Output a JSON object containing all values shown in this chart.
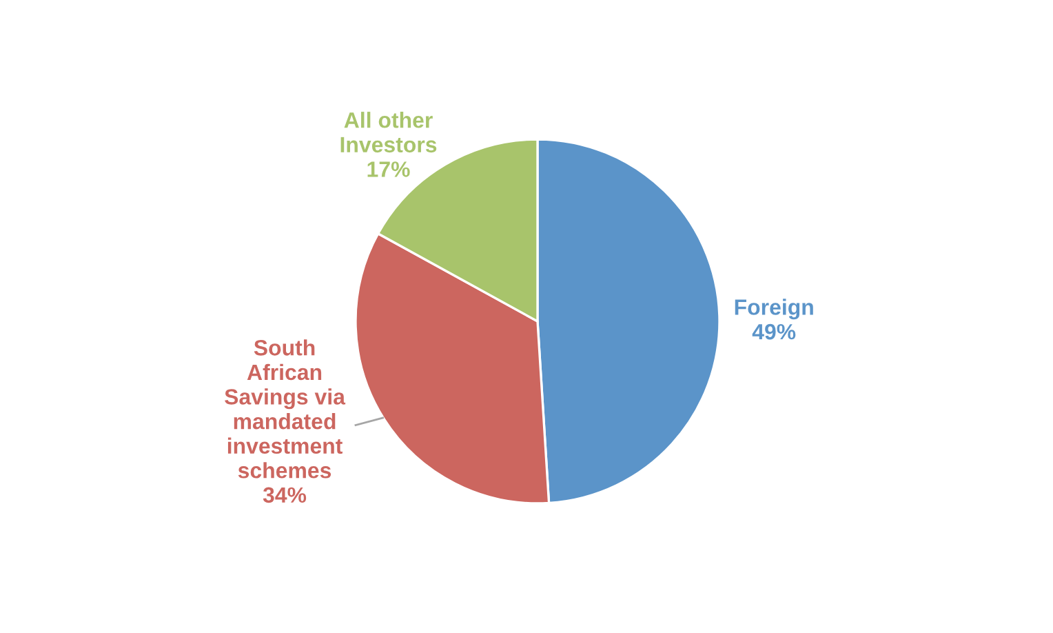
{
  "chart_data": {
    "type": "pie",
    "categories": [
      "Foreign",
      "South African Savings via mandated investment schemes",
      "All other Investors"
    ],
    "values": [
      49,
      34,
      17
    ],
    "colors": [
      "#5b94c9",
      "#cc665f",
      "#a8c46b"
    ],
    "value_labels": [
      "49%",
      "34%",
      "17%"
    ],
    "legend": false
  }
}
